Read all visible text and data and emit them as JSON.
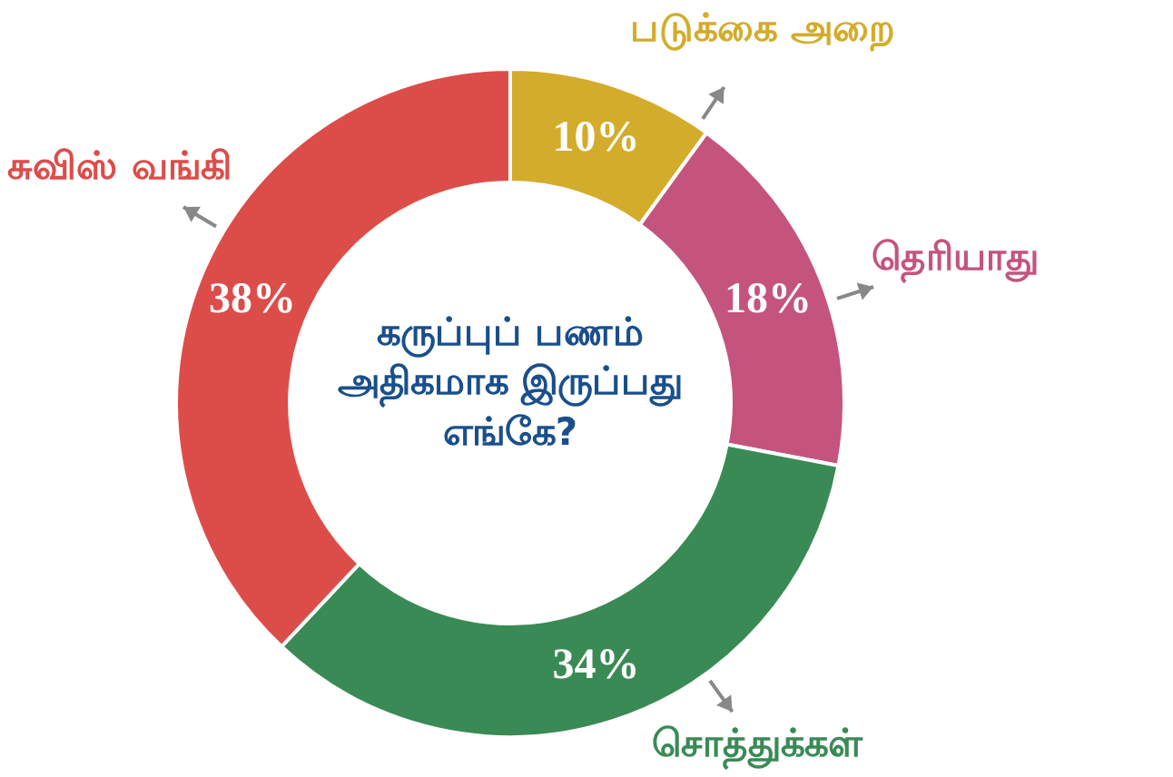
{
  "chart_data": {
    "type": "donut",
    "title": "கருப்புப் பணம் அதிகமாக இருப்பது எங்கே?",
    "categories": [
      "படுக்கை அறை",
      "தெரியாது",
      "சொத்துக்கள்",
      "சுவிஸ் வங்கி"
    ],
    "values": [
      10,
      18,
      34,
      38
    ],
    "value_labels": [
      "10%",
      "18%",
      "34%",
      "38%"
    ],
    "colors": [
      "#d4ac2b",
      "#c4547e",
      "#3a8a55",
      "#dc4d4a"
    ],
    "legend": false
  }
}
